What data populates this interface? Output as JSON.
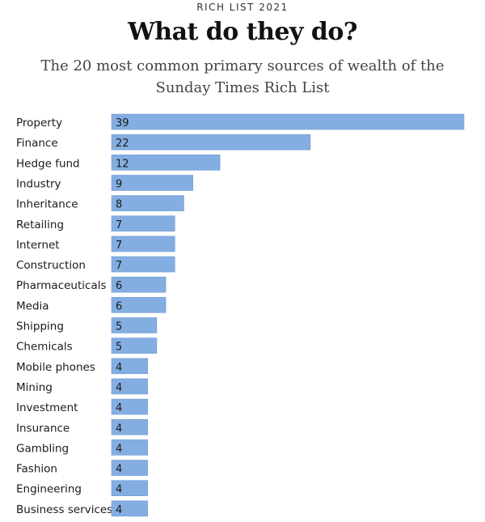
{
  "header": {
    "kicker": "RICH LIST 2021",
    "title": "What do they do?",
    "subtitle": "The 20 most common primary sources of wealth of the Sunday Times Rich List"
  },
  "colors": {
    "bar": "#84aee2",
    "bar_edge": "#6f9bd4"
  },
  "chart_data": {
    "type": "bar",
    "orientation": "horizontal",
    "title": "What do they do?",
    "subtitle": "The 20 most common primary sources of wealth of the Sunday Times Rich List",
    "xlabel": "",
    "ylabel": "",
    "grid": false,
    "legend": "none",
    "xlim": [
      0,
      39
    ],
    "categories": [
      "Property",
      "Finance",
      "Hedge fund",
      "Industry",
      "Inheritance",
      "Retailing",
      "Internet",
      "Construction",
      "Pharmaceuticals",
      "Media",
      "Shipping",
      "Chemicals",
      "Mobile phones",
      "Mining",
      "Investment",
      "Insurance",
      "Gambling",
      "Fashion",
      "Engineering",
      "Business services"
    ],
    "values": [
      39,
      22,
      12,
      9,
      8,
      7,
      7,
      7,
      6,
      6,
      5,
      5,
      4,
      4,
      4,
      4,
      4,
      4,
      4,
      4
    ]
  }
}
